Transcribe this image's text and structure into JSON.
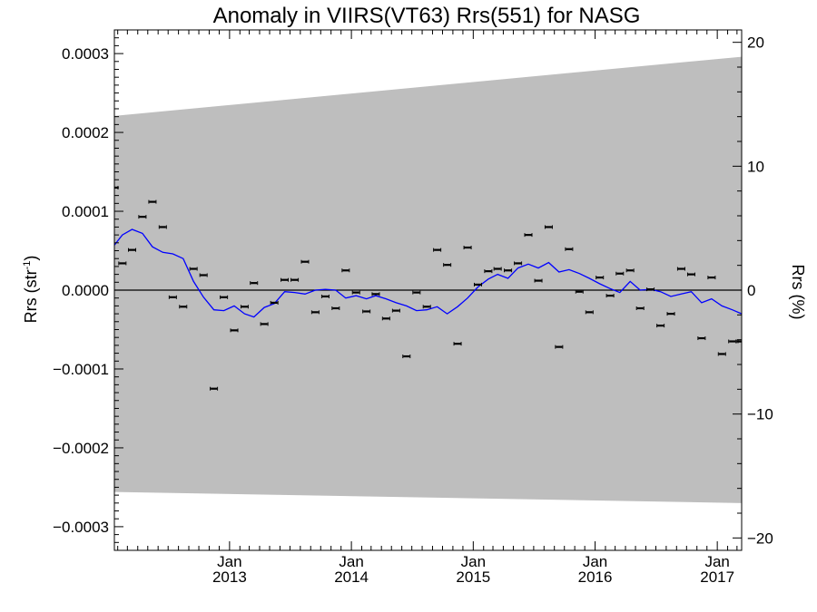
{
  "chart_data": {
    "type": "line",
    "title": "Anomaly in VIIRS(VT63) Rrs(551) for NASG",
    "ylabel_left": {
      "base": "Rrs (str",
      "sup": "-1",
      "close": ")"
    },
    "ylabel_right": "Rrs (%)",
    "x_range": [
      "2012-01-22",
      "2017-03-15"
    ],
    "ylim_left": [
      -0.00033,
      0.00033
    ],
    "ylim_right": [
      -21,
      21
    ],
    "x_ticks": [
      {
        "date": "2013-01-01",
        "line1": "Jan",
        "line2": "2013"
      },
      {
        "date": "2014-01-01",
        "line1": "Jan",
        "line2": "2014"
      },
      {
        "date": "2015-01-01",
        "line1": "Jan",
        "line2": "2015"
      },
      {
        "date": "2016-01-01",
        "line1": "Jan",
        "line2": "2016"
      },
      {
        "date": "2017-01-01",
        "line1": "Jan",
        "line2": "2017"
      }
    ],
    "y_ticks_left": [
      {
        "value": 0.0003,
        "label": "0.0003"
      },
      {
        "value": 0.0002,
        "label": "0.0002"
      },
      {
        "value": 0.0001,
        "label": "0.0001"
      },
      {
        "value": 0.0,
        "label": "0.0000"
      },
      {
        "value": -0.0001,
        "label": "−0.0001"
      },
      {
        "value": -0.0002,
        "label": "−0.0002"
      },
      {
        "value": -0.0003,
        "label": "−0.0003"
      }
    ],
    "y_ticks_right": [
      {
        "value": 20,
        "label": "20"
      },
      {
        "value": 10,
        "label": "10"
      },
      {
        "value": 0,
        "label": "0"
      },
      {
        "value": -10,
        "label": "−10"
      },
      {
        "value": -20,
        "label": "−20"
      }
    ],
    "band": {
      "start_date": "2012-01-22",
      "end_date": "2017-03-15",
      "upper": [
        0.000221,
        0.000296
      ],
      "lower": [
        -0.000256,
        -0.00027
      ]
    },
    "zero_line": 0.0,
    "series": [
      {
        "kind": "points_with_errorbars",
        "color": "#000000",
        "x": [
          "2012-01-22",
          "2012-02-15",
          "2012-03-15",
          "2012-04-15",
          "2012-05-15",
          "2012-06-15",
          "2012-07-15",
          "2012-08-15",
          "2012-09-15",
          "2012-10-15",
          "2012-11-15",
          "2012-12-15",
          "2013-01-15",
          "2013-02-15",
          "2013-03-15",
          "2013-04-15",
          "2013-05-15",
          "2013-06-15",
          "2013-07-15",
          "2013-08-15",
          "2013-09-15",
          "2013-10-15",
          "2013-11-15",
          "2013-12-15",
          "2014-01-15",
          "2014-02-15",
          "2014-03-15",
          "2014-04-15",
          "2014-05-15",
          "2014-06-15",
          "2014-07-15",
          "2014-08-15",
          "2014-09-15",
          "2014-10-15",
          "2014-11-15",
          "2014-12-15",
          "2015-01-15",
          "2015-02-15",
          "2015-03-15",
          "2015-04-15",
          "2015-05-15",
          "2015-06-15",
          "2015-07-15",
          "2015-08-15",
          "2015-09-15",
          "2015-10-15",
          "2015-11-15",
          "2015-12-15",
          "2016-01-15",
          "2016-02-15",
          "2016-03-15",
          "2016-04-15",
          "2016-05-15",
          "2016-06-15",
          "2016-07-15",
          "2016-08-15",
          "2016-09-15",
          "2016-10-15",
          "2016-11-15",
          "2016-12-15",
          "2017-01-15",
          "2017-02-15",
          "2017-03-10",
          "2017-03-15"
        ],
        "y": [
          0.00013,
          3.4e-05,
          5.1e-05,
          9.3e-05,
          0.000112,
          8e-05,
          -9e-06,
          -2.1e-05,
          2.7e-05,
          1.9e-05,
          -0.000125,
          -9e-06,
          -5.1e-05,
          -2.1e-05,
          9e-06,
          -4.3e-05,
          -1.6e-05,
          1.3e-05,
          1.3e-05,
          3.6e-05,
          -2.8e-05,
          -8e-06,
          -2.3e-05,
          2.5e-05,
          -3e-06,
          -2.7e-05,
          -5e-06,
          -3.6e-05,
          -2.6e-05,
          -8.4e-05,
          -3e-06,
          -2.1e-05,
          5.1e-05,
          3.2e-05,
          -6.8e-05,
          5.4e-05,
          7e-06,
          2.4e-05,
          2.7e-05,
          2.5e-05,
          3.4e-05,
          7e-05,
          1.2e-05,
          8e-05,
          -7.2e-05,
          5.2e-05,
          -2e-06,
          -2.8e-05,
          1.6e-05,
          -7e-06,
          2.1e-05,
          2.5e-05,
          -2.3e-05,
          1e-06,
          -4.5e-05,
          -3e-05,
          2.7e-05,
          2e-05,
          -6.1e-05,
          1.6e-05,
          -8.1e-05,
          -6.5e-05,
          -6.5e-05,
          -6.5e-05
        ]
      },
      {
        "kind": "line",
        "color": "#0000ff",
        "x": [
          "2012-01-22",
          "2012-02-15",
          "2012-03-15",
          "2012-04-15",
          "2012-05-15",
          "2012-06-15",
          "2012-07-15",
          "2012-08-15",
          "2012-09-15",
          "2012-10-15",
          "2012-11-15",
          "2012-12-15",
          "2013-01-15",
          "2013-02-15",
          "2013-03-15",
          "2013-04-15",
          "2013-05-15",
          "2013-06-15",
          "2013-07-15",
          "2013-08-15",
          "2013-09-15",
          "2013-10-15",
          "2013-11-15",
          "2013-12-15",
          "2014-01-15",
          "2014-02-15",
          "2014-03-15",
          "2014-04-15",
          "2014-05-15",
          "2014-06-15",
          "2014-07-15",
          "2014-08-15",
          "2014-09-15",
          "2014-10-15",
          "2014-11-15",
          "2014-12-15",
          "2015-01-15",
          "2015-02-15",
          "2015-03-15",
          "2015-04-15",
          "2015-05-15",
          "2015-06-15",
          "2015-07-15",
          "2015-08-15",
          "2015-09-15",
          "2015-10-15",
          "2015-11-15",
          "2015-12-15",
          "2016-01-15",
          "2016-02-15",
          "2016-03-15",
          "2016-04-15",
          "2016-05-15",
          "2016-06-15",
          "2016-07-15",
          "2016-08-15",
          "2016-09-15",
          "2016-10-15",
          "2016-11-15",
          "2016-12-15",
          "2017-01-15",
          "2017-02-15",
          "2017-03-15"
        ],
        "y": [
          5.7e-05,
          7e-05,
          7.7e-05,
          7.2e-05,
          5.5e-05,
          4.8e-05,
          4.6e-05,
          4e-05,
          1.1e-05,
          -9e-06,
          -2.5e-05,
          -2.6e-05,
          -2e-05,
          -3e-05,
          -3.4e-05,
          -2.2e-05,
          -1.7e-05,
          -2e-06,
          -3e-06,
          -5e-06,
          0.0,
          1e-06,
          0.0,
          -1e-05,
          -7e-06,
          -1.1e-05,
          -7e-06,
          -1.1e-05,
          -1.6e-05,
          -2e-05,
          -2.6e-05,
          -2.5e-05,
          -2.1e-05,
          -3e-05,
          -2.1e-05,
          -1e-05,
          4e-06,
          1.4e-05,
          2e-05,
          1.5e-05,
          2.8e-05,
          3.3e-05,
          2.8e-05,
          3.5e-05,
          2.3e-05,
          2.6e-05,
          2.1e-05,
          1.5e-05,
          8e-06,
          2e-06,
          -3e-06,
          1.1e-05,
          0.0,
          1e-06,
          -2e-06,
          -8e-06,
          -5e-06,
          -2e-06,
          -1.6e-05,
          -1.1e-05,
          -2e-05,
          -2.5e-05,
          -3e-05
        ]
      }
    ]
  }
}
